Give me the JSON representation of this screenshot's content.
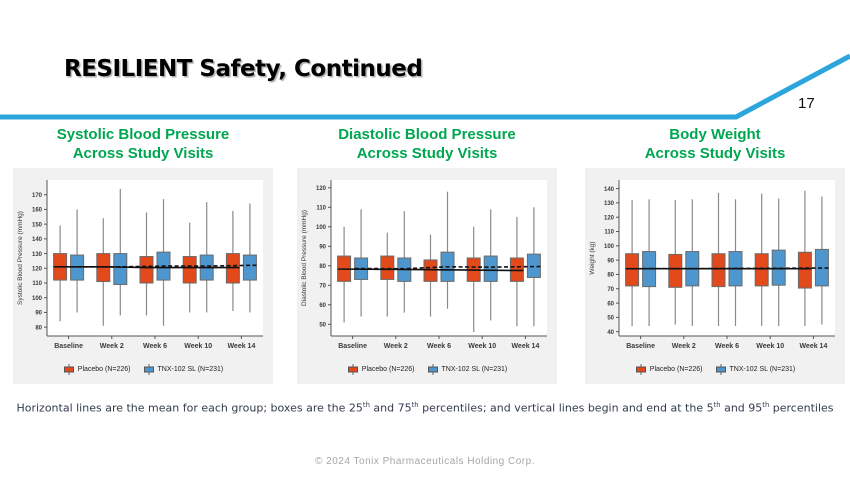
{
  "slide": {
    "title": "RESILIENT Safety, Continued",
    "page_number": "17",
    "accent_color": "#2BA5DB",
    "footer": "© 2024 Tonix Pharmaceuticals Holding Corp."
  },
  "footnote": {
    "text": "Horizontal lines are the mean for each group; boxes are the 25th and 75th percentiles; and vertical lines begin and end at the 5th and 95th percentiles",
    "segments": [
      {
        "text": "Horizontal lines are the mean for each group; boxes are the 25"
      },
      {
        "sup": "th"
      },
      {
        "text": " and 75"
      },
      {
        "sup": "th"
      },
      {
        "text": " percentiles; and vertical lines begin and end at the 5"
      },
      {
        "sup": "th"
      },
      {
        "text": " and 95"
      },
      {
        "sup": "th"
      },
      {
        "text": " percentiles"
      }
    ]
  },
  "legend": {
    "placebo_label": "Placebo (N=226)",
    "tnx_label": "TNX-102 SL (N=231)",
    "placebo_color": "#E2491B",
    "tnx_color": "#4E96CE"
  },
  "chart_data": [
    {
      "type": "boxplot",
      "title_line1": "Systolic Blood Pressure",
      "title_line2": "Across Study Visits",
      "ylabel": "Systolic Blood Pressure (mmHg)",
      "categories": [
        "Baseline",
        "Week 2",
        "Week 6",
        "Week 10",
        "Week 14"
      ],
      "yticks": [
        80,
        90,
        100,
        110,
        120,
        130,
        140,
        150,
        160,
        170
      ],
      "ylim": [
        74,
        180
      ],
      "series": [
        {
          "name": "Placebo (N=226)",
          "color": "#E2491B",
          "line": "solid",
          "boxes": [
            {
              "low": 84,
              "q1": 112,
              "q3": 130,
              "high": 149
            },
            {
              "low": 81,
              "q1": 111,
              "q3": 130,
              "high": 154
            },
            {
              "low": 88,
              "q1": 110,
              "q3": 128,
              "high": 158
            },
            {
              "low": 90,
              "q1": 110,
              "q3": 128,
              "high": 151
            },
            {
              "low": 91,
              "q1": 110,
              "q3": 130,
              "high": 159
            }
          ],
          "means": [
            121,
            121,
            120.5,
            120.5,
            120.5
          ]
        },
        {
          "name": "TNX-102 SL (N=231)",
          "color": "#4E96CE",
          "line": "dashed",
          "boxes": [
            {
              "low": 90,
              "q1": 112,
              "q3": 129,
              "high": 160
            },
            {
              "low": 88,
              "q1": 109,
              "q3": 130,
              "high": 174
            },
            {
              "low": 81,
              "q1": 112,
              "q3": 131,
              "high": 167
            },
            {
              "low": 90,
              "q1": 112,
              "q3": 129,
              "high": 165
            },
            {
              "low": 90,
              "q1": 112,
              "q3": 129,
              "high": 164
            }
          ],
          "means": [
            121,
            121,
            121.5,
            121.5,
            122
          ]
        }
      ]
    },
    {
      "type": "boxplot",
      "title_line1": "Diastolic Blood Pressure",
      "title_line2": "Across Study Visits",
      "ylabel": "Diastolic Blood Pressure (mmHg)",
      "categories": [
        "Baseline",
        "Week 2",
        "Week 6",
        "Week 10",
        "Week 14"
      ],
      "yticks": [
        50,
        60,
        70,
        80,
        90,
        100,
        110,
        120
      ],
      "ylim": [
        44,
        124
      ],
      "series": [
        {
          "name": "Placebo (N=226)",
          "color": "#E2491B",
          "line": "solid",
          "boxes": [
            {
              "low": 51,
              "q1": 72,
              "q3": 85,
              "high": 100
            },
            {
              "low": 54,
              "q1": 73,
              "q3": 85,
              "high": 97
            },
            {
              "low": 54,
              "q1": 72,
              "q3": 83,
              "high": 96
            },
            {
              "low": 46,
              "q1": 72,
              "q3": 84,
              "high": 100
            },
            {
              "low": 49,
              "q1": 72,
              "q3": 84,
              "high": 105
            }
          ],
          "means": [
            78.3,
            78.2,
            78,
            77.8,
            77.6
          ]
        },
        {
          "name": "TNX-102 SL (N=231)",
          "color": "#4E96CE",
          "line": "dashed",
          "boxes": [
            {
              "low": 54,
              "q1": 73,
              "q3": 84,
              "high": 109
            },
            {
              "low": 56,
              "q1": 72,
              "q3": 84,
              "high": 108
            },
            {
              "low": 58,
              "q1": 72,
              "q3": 87,
              "high": 118
            },
            {
              "low": 52,
              "q1": 72,
              "q3": 85,
              "high": 109
            },
            {
              "low": 49,
              "q1": 74,
              "q3": 86,
              "high": 110
            }
          ],
          "means": [
            78.6,
            78.5,
            79.5,
            79.3,
            79.6
          ]
        }
      ]
    },
    {
      "type": "boxplot",
      "title_line1": "Body Weight",
      "title_line2": "Across Study Visits",
      "ylabel": "Weight (kg)",
      "categories": [
        "Baseline",
        "Week 2",
        "Week 6",
        "Week 10",
        "Week 14"
      ],
      "yticks": [
        40,
        50,
        60,
        70,
        80,
        90,
        100,
        110,
        120,
        130,
        140
      ],
      "ylim": [
        37,
        146
      ],
      "series": [
        {
          "name": "Placebo (N=226)",
          "color": "#E2491B",
          "line": "solid",
          "boxes": [
            {
              "low": 44,
              "q1": 72,
              "q3": 94.5,
              "high": 132
            },
            {
              "low": 45,
              "q1": 71,
              "q3": 94,
              "high": 132
            },
            {
              "low": 44,
              "q1": 71.5,
              "q3": 94.5,
              "high": 137
            },
            {
              "low": 44,
              "q1": 72,
              "q3": 94.5,
              "high": 136.5
            },
            {
              "low": 44,
              "q1": 70.5,
              "q3": 95.5,
              "high": 138.5
            }
          ],
          "means": [
            84,
            84,
            84,
            84,
            84
          ]
        },
        {
          "name": "TNX-102 SL (N=231)",
          "color": "#4E96CE",
          "line": "dashed",
          "boxes": [
            {
              "low": 44,
              "q1": 71.5,
              "q3": 96,
              "high": 132.5
            },
            {
              "low": 44,
              "q1": 72,
              "q3": 96,
              "high": 132.5
            },
            {
              "low": 44,
              "q1": 72,
              "q3": 96,
              "high": 132.5
            },
            {
              "low": 44,
              "q1": 72.5,
              "q3": 97,
              "high": 133
            },
            {
              "low": 45,
              "q1": 72,
              "q3": 97.5,
              "high": 134.5
            }
          ],
          "means": [
            84,
            84,
            84.2,
            84.3,
            84.5
          ]
        }
      ]
    }
  ]
}
